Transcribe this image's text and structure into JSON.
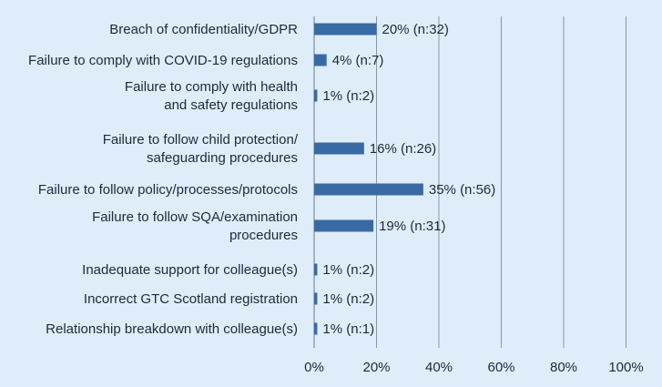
{
  "colors": {
    "background": "#deedf9",
    "bar": "#3a6aa3",
    "grid": "#8a97a6",
    "axis": "#6b7a8a",
    "text": "#1c2b3a"
  },
  "chart_data": {
    "type": "bar",
    "orientation": "horizontal",
    "title": "",
    "xlabel": "",
    "ylabel": "",
    "xlim": [
      0,
      100
    ],
    "grid": true,
    "legend": "none",
    "x_ticks": [
      "0%",
      "20%",
      "40%",
      "60%",
      "80%",
      "100%"
    ],
    "categories": [
      [
        "Breach of confidentiality/GDPR"
      ],
      [
        "Failure to comply with COVID-19 regulations"
      ],
      [
        "Failure to comply with health",
        "and safety regulations"
      ],
      [
        "Failure to follow child protection/",
        "safeguarding procedures"
      ],
      [
        "Failure to follow policy/processes/protocols"
      ],
      [
        "Failure to follow SQA/examination",
        "procedures"
      ],
      [
        "Inadequate support for colleague(s)"
      ],
      [
        "Incorrect GTC Scotland registration"
      ],
      [
        "Relationship breakdown with colleague(s)"
      ]
    ],
    "values": [
      20,
      4,
      1,
      16,
      35,
      19,
      1,
      1,
      1
    ],
    "value_labels": [
      "20% (n:32)",
      "4% (n:7)",
      "1% (n:2)",
      "16% (n:26)",
      "35% (n:56)",
      "19% (n:31)",
      "1% (n:2)",
      "1% (n:2)",
      "1% (n:1)"
    ]
  }
}
